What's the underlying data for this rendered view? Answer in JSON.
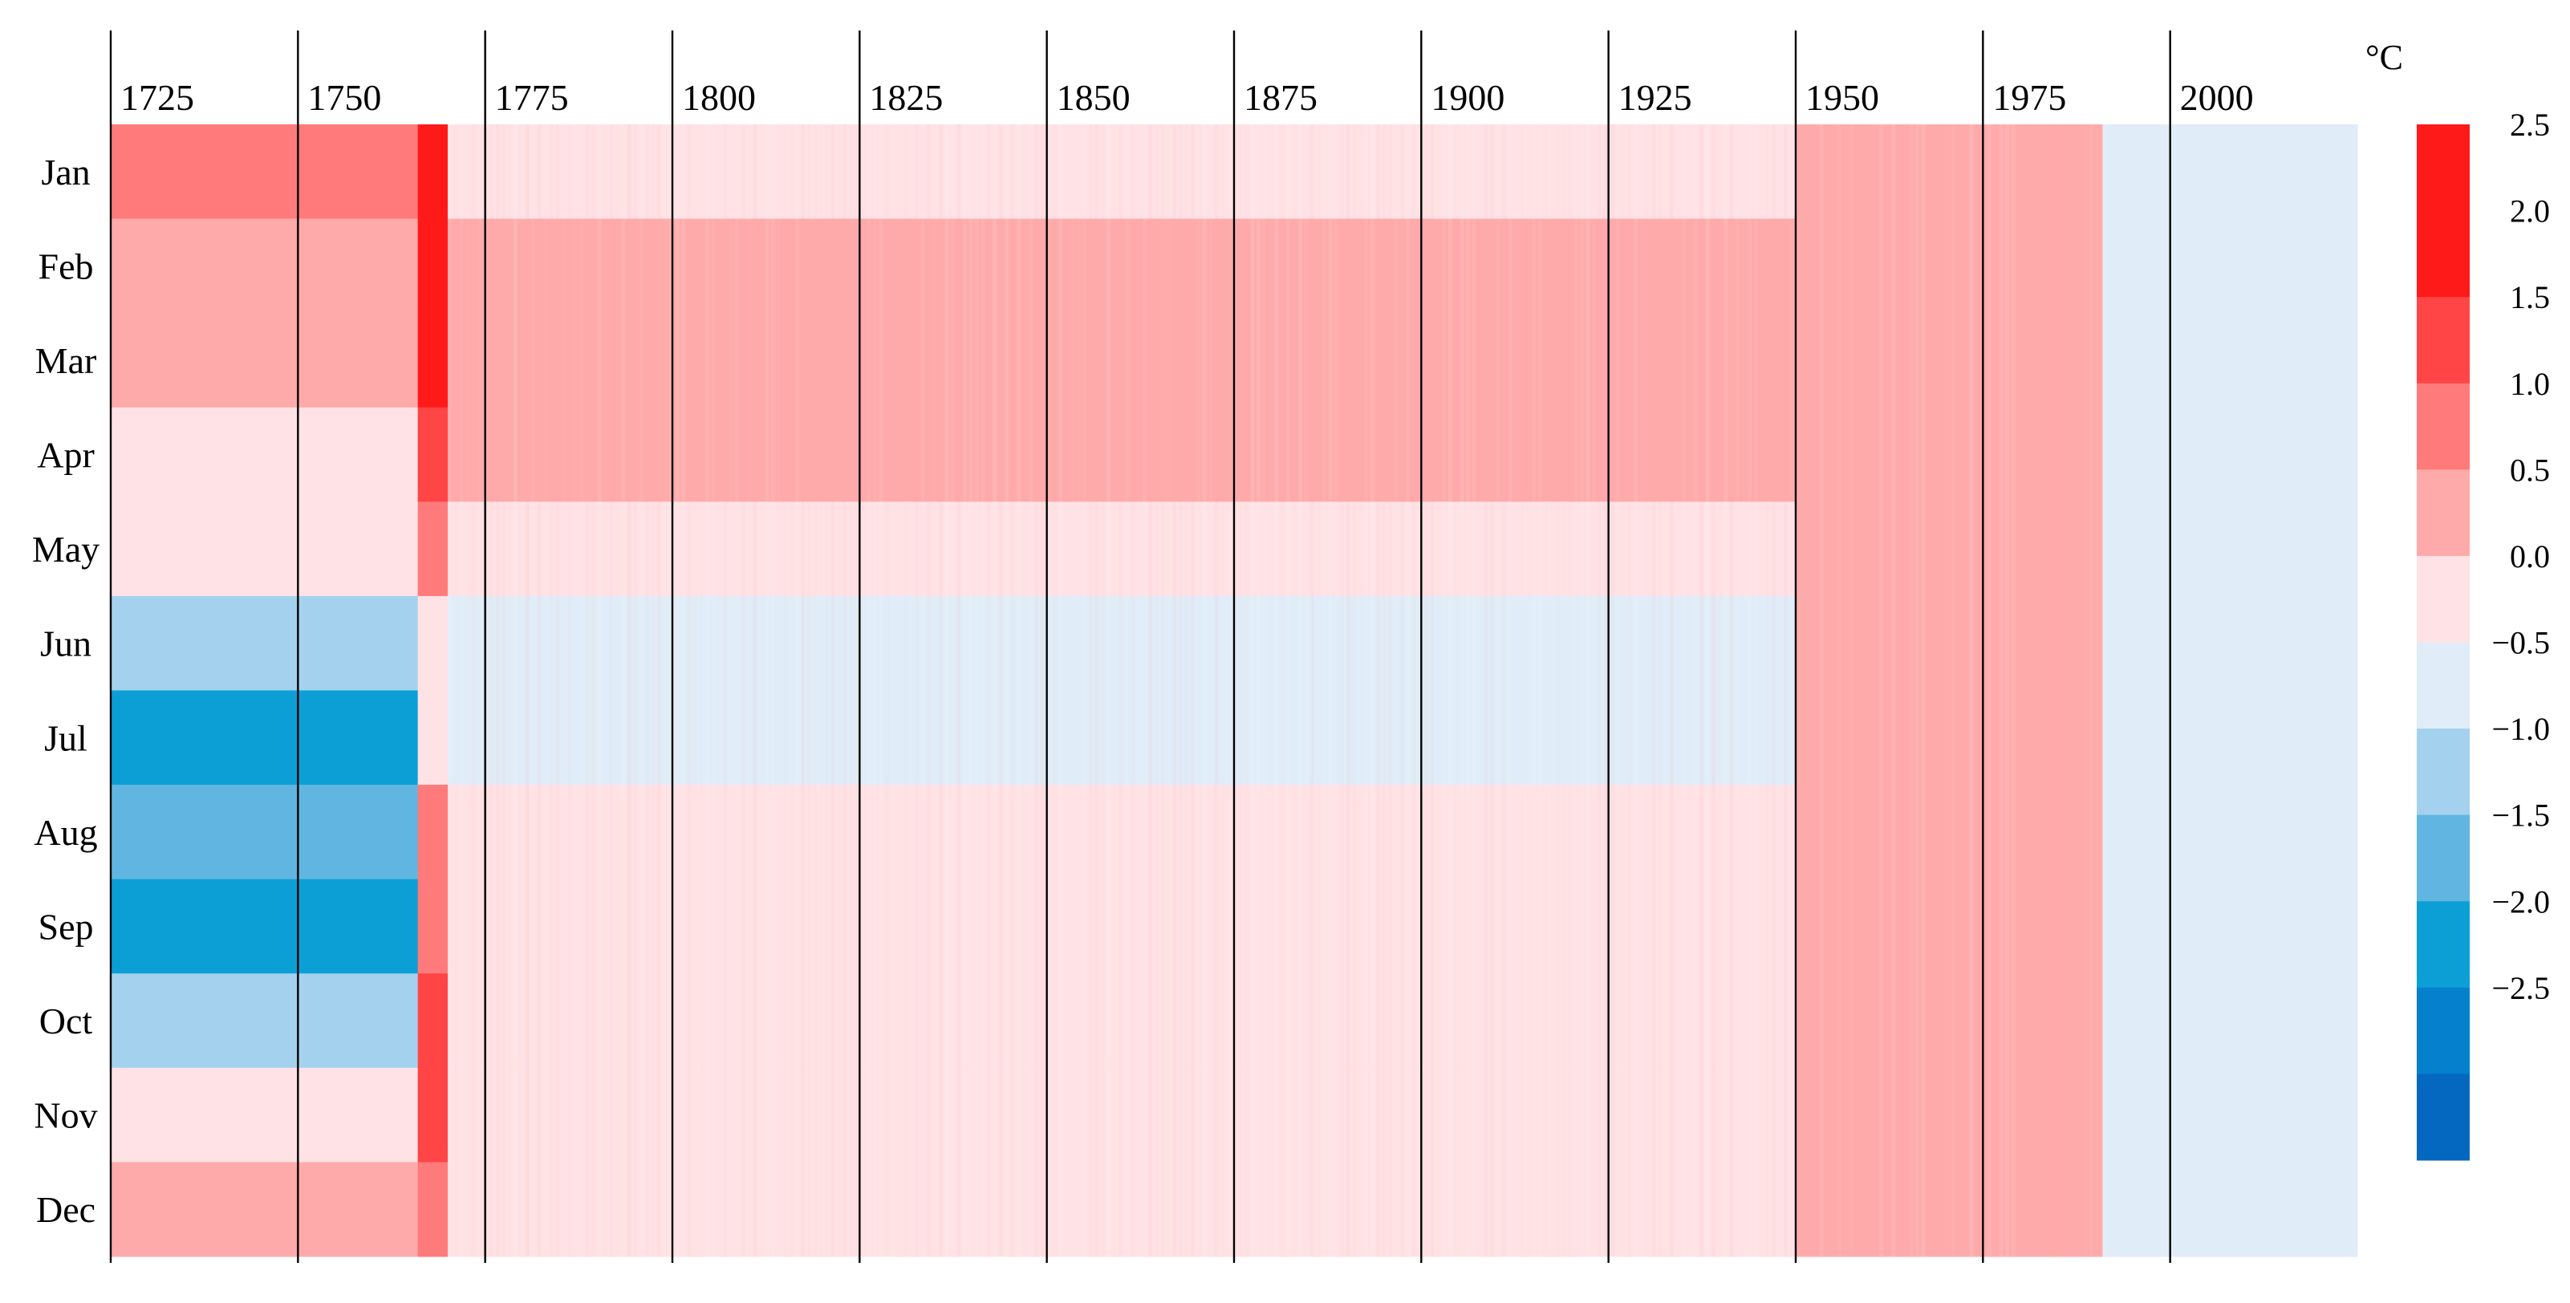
{
  "chart_data": {
    "type": "heatmap",
    "title": "",
    "xlabel": "",
    "ylabel": "",
    "unit": "°C",
    "x_ticks": [
      "1725",
      "1750",
      "1775",
      "1800",
      "1825",
      "1850",
      "1875",
      "1900",
      "1925",
      "1950",
      "1975",
      "2000"
    ],
    "x_tick_values": [
      1725,
      1750,
      1775,
      1800,
      1825,
      1850,
      1875,
      1900,
      1925,
      1950,
      1975,
      2000
    ],
    "xlim": [
      1725,
      2025
    ],
    "months": [
      "Jan",
      "Feb",
      "Mar",
      "Apr",
      "May",
      "Jun",
      "Jul",
      "Aug",
      "Sep",
      "Oct",
      "Nov",
      "Dec"
    ],
    "segments": [
      {
        "from": 1725,
        "to": 1766,
        "values": [
          1.1,
          0.8,
          0.7,
          0.3,
          0.3,
          -0.8,
          -1.7,
          -1.5,
          -1.8,
          -0.8,
          0.3,
          0.9
        ]
      },
      {
        "from": 1766,
        "to": 1770,
        "values": [
          2.0,
          2.1,
          2.0,
          1.9,
          1.2,
          0.2,
          0.1,
          1.3,
          1.2,
          1.9,
          1.8,
          1.1
        ]
      },
      {
        "from": 1770,
        "to": 1950,
        "values": [
          0.3,
          0.7,
          0.6,
          0.5,
          0.05,
          -0.25,
          -0.35,
          0.2,
          0.2,
          0.1,
          0.3,
          0.3
        ]
      },
      {
        "from": 1950,
        "to": 1991,
        "values": [
          0.5,
          0.9,
          0.9,
          0.8,
          0.7,
          0.6,
          0.6,
          0.6,
          0.6,
          0.5,
          0.6,
          0.6
        ]
      },
      {
        "from": 1991,
        "to": 2025,
        "values": [
          -0.05,
          -0.05,
          -0.05,
          -0.05,
          -0.05,
          -0.05,
          -0.05,
          -0.05,
          -0.05,
          -0.05,
          -0.05,
          -0.05
        ]
      }
    ],
    "colorbar": {
      "labels": [
        "2.5",
        "2.0",
        "1.5",
        "1.0",
        "0.5",
        "0.0",
        "−0.5",
        "−1.0",
        "−1.5",
        "−2.0",
        "−2.5"
      ],
      "bins": [
        {
          "min": 2.5,
          "max": 3.0,
          "color": "#ff1a1a"
        },
        {
          "min": 2.0,
          "max": 2.5,
          "color": "#ff1a1a"
        },
        {
          "min": 1.5,
          "max": 2.0,
          "color": "#ff4545"
        },
        {
          "min": 1.0,
          "max": 1.5,
          "color": "#ff7a7a"
        },
        {
          "min": 0.5,
          "max": 1.0,
          "color": "#ffaaaa"
        },
        {
          "min": 0.0,
          "max": 0.5,
          "color": "#ffe2e5"
        },
        {
          "min": -0.5,
          "max": 0.0,
          "color": "#e0edf8"
        },
        {
          "min": -1.0,
          "max": -0.5,
          "color": "#a4d2ee"
        },
        {
          "min": -1.5,
          "max": -1.0,
          "color": "#60b6e0"
        },
        {
          "min": -2.0,
          "max": -1.5,
          "color": "#0c9fd6"
        },
        {
          "min": -2.5,
          "max": -2.0,
          "color": "#0480cc"
        },
        {
          "min": -3.0,
          "max": -2.5,
          "color": "#0468c0"
        }
      ]
    },
    "grid": "vertical"
  }
}
